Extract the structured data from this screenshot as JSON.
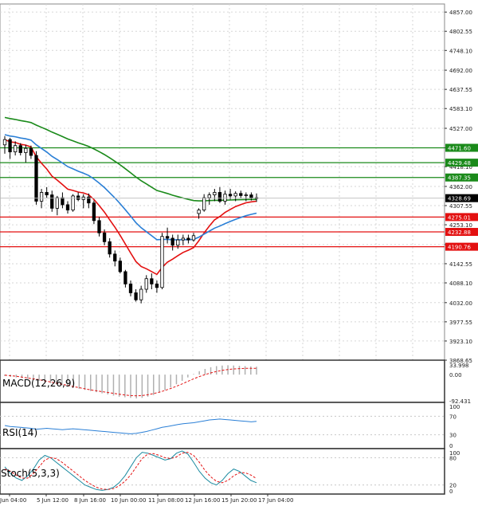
{
  "chart_data": {
    "type": "candlestick",
    "main": {
      "price_axis_labels": [
        "4857.00",
        "4802.55",
        "4748.10",
        "4692.00",
        "4637.55",
        "4583.10",
        "4527.00",
        "4471.60",
        "4418.10",
        "4362.00",
        "4307.55",
        "4253.10",
        "4197.00",
        "4142.55",
        "4088.10",
        "4032.00",
        "3977.55",
        "3923.10",
        "3868.65"
      ],
      "ylim": [
        3868.65,
        4880
      ],
      "levels": [
        {
          "value": 4471.6,
          "label": "4471.60",
          "color": "#1a8a1a"
        },
        {
          "value": 4429.48,
          "label": "4429.48",
          "color": "#1a8a1a"
        },
        {
          "value": 4387.35,
          "label": "4387.35",
          "color": "#1a8a1a"
        },
        {
          "value": 4275.01,
          "label": "4275.01",
          "color": "#e31010"
        },
        {
          "value": 4232.88,
          "label": "4232.88",
          "color": "#e31010"
        },
        {
          "value": 4190.76,
          "label": "4190.76",
          "color": "#e31010"
        }
      ],
      "current_price": {
        "value": 4328.69,
        "label": "4328.69"
      },
      "candles": [
        [
          4480,
          4505,
          4455,
          4495
        ],
        [
          4495,
          4500,
          4440,
          4460
        ],
        [
          4460,
          4490,
          4450,
          4478
        ],
        [
          4478,
          4485,
          4450,
          4458
        ],
        [
          4458,
          4480,
          4430,
          4470
        ],
        [
          4470,
          4478,
          4440,
          4450
        ],
        [
          4450,
          4462,
          4310,
          4320
        ],
        [
          4320,
          4355,
          4300,
          4345
        ],
        [
          4345,
          4360,
          4330,
          4338
        ],
        [
          4338,
          4350,
          4290,
          4300
        ],
        [
          4300,
          4335,
          4280,
          4330
        ],
        [
          4330,
          4345,
          4300,
          4310
        ],
        [
          4310,
          4320,
          4285,
          4295
        ],
        [
          4295,
          4340,
          4290,
          4335
        ],
        [
          4335,
          4345,
          4320,
          4325
        ],
        [
          4325,
          4340,
          4300,
          4332
        ],
        [
          4332,
          4342,
          4300,
          4315
        ],
        [
          4315,
          4322,
          4255,
          4265
        ],
        [
          4265,
          4275,
          4220,
          4230
        ],
        [
          4230,
          4240,
          4195,
          4205
        ],
        [
          4205,
          4215,
          4160,
          4170
        ],
        [
          4170,
          4180,
          4135,
          4150
        ],
        [
          4150,
          4160,
          4115,
          4120
        ],
        [
          4120,
          4125,
          4075,
          4085
        ],
        [
          4085,
          4095,
          4050,
          4060
        ],
        [
          4060,
          4070,
          4035,
          4040
        ],
        [
          4040,
          4080,
          4030,
          4070
        ],
        [
          4070,
          4110,
          4060,
          4100
        ],
        [
          4100,
          4115,
          4070,
          4085
        ],
        [
          4085,
          4095,
          4060,
          4075
        ],
        [
          4075,
          4230,
          4070,
          4220
        ],
        [
          4220,
          4245,
          4200,
          4215
        ],
        [
          4215,
          4225,
          4180,
          4195
        ],
        [
          4195,
          4225,
          4185,
          4210
        ],
        [
          4210,
          4225,
          4195,
          4215
        ],
        [
          4215,
          4225,
          4200,
          4210
        ],
        [
          4210,
          4230,
          4205,
          4222
        ],
        [
          4285,
          4300,
          4270,
          4295
        ],
        [
          4295,
          4340,
          4290,
          4330
        ],
        [
          4330,
          4345,
          4310,
          4338
        ],
        [
          4338,
          4355,
          4320,
          4345
        ],
        [
          4345,
          4360,
          4315,
          4320
        ],
        [
          4320,
          4350,
          4310,
          4340
        ],
        [
          4340,
          4355,
          4325,
          4335
        ],
        [
          4335,
          4348,
          4320,
          4342
        ],
        [
          4342,
          4350,
          4328,
          4336
        ],
        [
          4336,
          4345,
          4320,
          4338
        ],
        [
          4338,
          4345,
          4322,
          4330
        ],
        [
          4330,
          4342,
          4318,
          4328
        ]
      ]
    },
    "macd": {
      "label": "MACD(12,26,9)",
      "axis_labels": [
        "33.998",
        "0.00",
        "-92.431"
      ],
      "ylim": [
        -92.431,
        33.998
      ],
      "histogram": [
        -5,
        -8,
        -10,
        -12,
        -15,
        -18,
        -22,
        -26,
        -30,
        -34,
        -38,
        -42,
        -46,
        -50,
        -54,
        -58,
        -62,
        -66,
        -70,
        -74,
        -78,
        -80,
        -82,
        -84,
        -82,
        -78,
        -72,
        -64,
        -55,
        -45,
        -34,
        -22,
        -10,
        2,
        12,
        20,
        26,
        30,
        32,
        33,
        32,
        31,
        30,
        29,
        28
      ],
      "signal": [
        -2,
        -4,
        -6,
        -9,
        -12,
        -15,
        -18,
        -22,
        -26,
        -30,
        -34,
        -38,
        -42,
        -46,
        -50,
        -54,
        -57,
        -60,
        -63,
        -66,
        -69,
        -72,
        -74,
        -75,
        -74,
        -71,
        -67,
        -62,
        -56,
        -49,
        -41,
        -33,
        -24,
        -15,
        -7,
        0,
        6,
        11,
        15,
        18,
        20,
        21,
        22,
        22,
        22
      ]
    },
    "rsi": {
      "label": "RSI(14)",
      "axis_labels": [
        "100",
        "70",
        "30",
        "0"
      ],
      "ylim": [
        0,
        100
      ],
      "values": [
        50,
        48,
        47,
        46,
        45,
        44,
        42,
        43,
        44,
        43,
        42,
        41,
        42,
        43,
        42,
        41,
        40,
        39,
        38,
        37,
        36,
        35,
        34,
        33,
        32,
        33,
        35,
        37,
        40,
        43,
        46,
        48,
        50,
        52,
        54,
        55,
        56,
        58,
        60,
        62,
        63,
        64,
        63,
        62,
        61,
        60,
        59,
        58,
        59
      ]
    },
    "stoch": {
      "label": "Stoch(5,3,3)",
      "axis_labels": [
        "100",
        "80",
        "20",
        "0"
      ],
      "ylim": [
        0,
        100
      ],
      "k": [
        60,
        45,
        35,
        30,
        40,
        55,
        75,
        85,
        80,
        70,
        60,
        50,
        40,
        30,
        20,
        15,
        10,
        8,
        10,
        15,
        25,
        40,
        60,
        80,
        92,
        90,
        85,
        80,
        75,
        78,
        90,
        95,
        88,
        70,
        50,
        35,
        25,
        20,
        30,
        45,
        55,
        50,
        40,
        30,
        25
      ],
      "d": [
        55,
        50,
        42,
        35,
        35,
        45,
        60,
        75,
        80,
        78,
        70,
        60,
        50,
        40,
        30,
        22,
        15,
        11,
        10,
        12,
        18,
        28,
        42,
        60,
        78,
        88,
        89,
        85,
        80,
        78,
        82,
        90,
        92,
        85,
        70,
        52,
        38,
        28,
        25,
        30,
        40,
        47,
        47,
        42,
        34
      ]
    },
    "x_tick_labels": [
      "Jun 04:00",
      "5 Jun 12:00",
      "8 Jun 16:00",
      "10 Jun 00:00",
      "11 Jun 08:00",
      "12 Jun 16:00",
      "15 Jun 20:00",
      "17 Jun 04:00"
    ]
  }
}
